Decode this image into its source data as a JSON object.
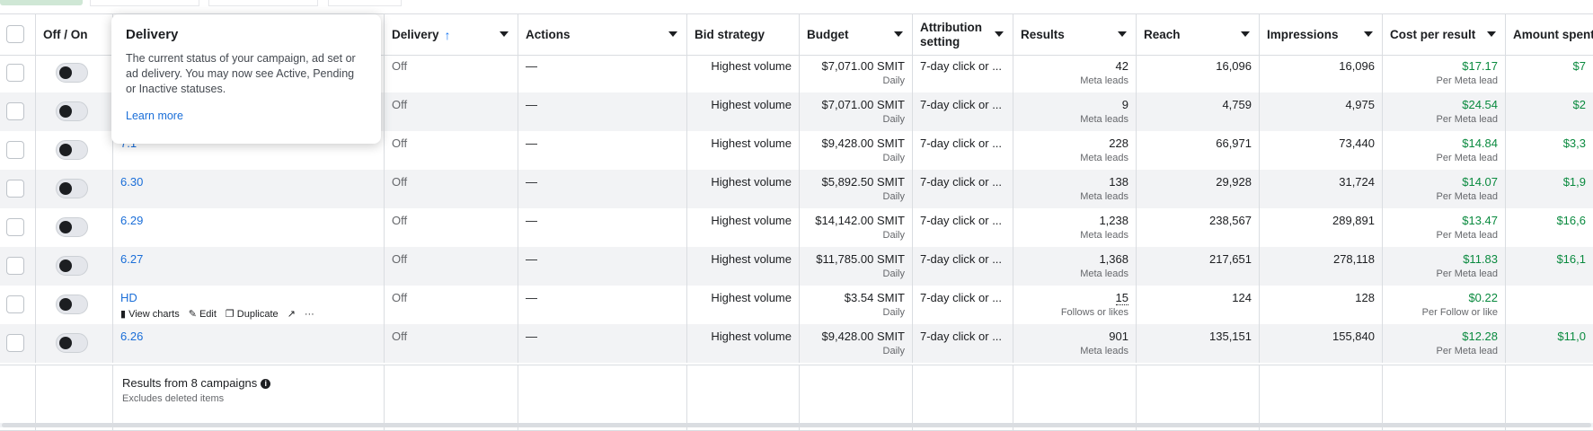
{
  "columns": {
    "off_on": "Off / On",
    "delivery": "Delivery",
    "delivery_sort_icon": "arrow-up-icon",
    "actions": "Actions",
    "bid_strategy": "Bid strategy",
    "budget": "Budget",
    "attribution": "Attribution setting",
    "results": "Results",
    "reach": "Reach",
    "impressions": "Impressions",
    "cost_per_result": "Cost per result",
    "amount_spent": "Amount spent"
  },
  "tooltip": {
    "title": "Delivery",
    "body": "The current status of your campaign, ad set or ad delivery. You may now see Active, Pending or Inactive statuses.",
    "link": "Learn more"
  },
  "rows": [
    {
      "name": "",
      "delivery": "Off",
      "actions": "—",
      "bid": "Highest volume",
      "budget": "$7,071.00 SMIT",
      "budget_period": "Daily",
      "attribution": "7-day click or ...",
      "results": "42",
      "results_type": "Meta leads",
      "reach": "16,096",
      "impressions": "16,096",
      "cpr": "$17.17",
      "cpr_type": "Per Meta lead",
      "spent": "$7"
    },
    {
      "name": "",
      "delivery": "Off",
      "actions": "—",
      "bid": "Highest volume",
      "budget": "$7,071.00 SMIT",
      "budget_period": "Daily",
      "attribution": "7-day click or ...",
      "results": "9",
      "results_type": "Meta leads",
      "reach": "4,759",
      "impressions": "4,975",
      "cpr": "$24.54",
      "cpr_type": "Per Meta lead",
      "spent": "$2"
    },
    {
      "name": "7.1",
      "delivery": "Off",
      "actions": "—",
      "bid": "Highest volume",
      "budget": "$9,428.00 SMIT",
      "budget_period": "Daily",
      "attribution": "7-day click or ...",
      "results": "228",
      "results_type": "Meta leads",
      "reach": "66,971",
      "impressions": "73,440",
      "cpr": "$14.84",
      "cpr_type": "Per Meta lead",
      "spent": "$3,3"
    },
    {
      "name": "6.30",
      "delivery": "Off",
      "actions": "—",
      "bid": "Highest volume",
      "budget": "$5,892.50 SMIT",
      "budget_period": "Daily",
      "attribution": "7-day click or ...",
      "results": "138",
      "results_type": "Meta leads",
      "reach": "29,928",
      "impressions": "31,724",
      "cpr": "$14.07",
      "cpr_type": "Per Meta lead",
      "spent": "$1,9"
    },
    {
      "name": "6.29",
      "delivery": "Off",
      "actions": "—",
      "bid": "Highest volume",
      "budget": "$14,142.00 SMIT",
      "budget_period": "Daily",
      "attribution": "7-day click or ...",
      "results": "1,238",
      "results_type": "Meta leads",
      "reach": "238,567",
      "impressions": "289,891",
      "cpr": "$13.47",
      "cpr_type": "Per Meta lead",
      "spent": "$16,6"
    },
    {
      "name": "6.27",
      "delivery": "Off",
      "actions": "—",
      "bid": "Highest volume",
      "budget": "$11,785.00 SMIT",
      "budget_period": "Daily",
      "attribution": "7-day click or ...",
      "results": "1,368",
      "results_type": "Meta leads",
      "reach": "217,651",
      "impressions": "278,118",
      "cpr": "$11.83",
      "cpr_type": "Per Meta lead",
      "spent": "$16,1"
    },
    {
      "name": "HD",
      "delivery": "Off",
      "actions": "—",
      "bid": "Highest volume",
      "budget": "$3.54 SMIT",
      "budget_period": "Daily",
      "attribution": "7-day click or ...",
      "results": "15",
      "results_type": "Follows or likes",
      "reach": "124",
      "impressions": "128",
      "cpr": "$0.22",
      "cpr_type": "Per Follow or like",
      "spent": ""
    },
    {
      "name": "6.26",
      "delivery": "Off",
      "actions": "—",
      "bid": "Highest volume",
      "budget": "$9,428.00 SMIT",
      "budget_period": "Daily",
      "attribution": "7-day click or ...",
      "results": "901",
      "results_type": "Meta leads",
      "reach": "135,151",
      "impressions": "155,840",
      "cpr": "$12.28",
      "cpr_type": "Per Meta lead",
      "spent": "$11,0"
    }
  ],
  "row_actions": {
    "view_charts": "View charts",
    "edit": "Edit",
    "duplicate": "Duplicate",
    "more": "···"
  },
  "footer": {
    "results_from": "Results from 8 campaigns",
    "excludes": "Excludes deleted items"
  },
  "colors": {
    "accent": "#1877f2",
    "link": "#1a6ed8",
    "positive": "#0a8a3f"
  }
}
